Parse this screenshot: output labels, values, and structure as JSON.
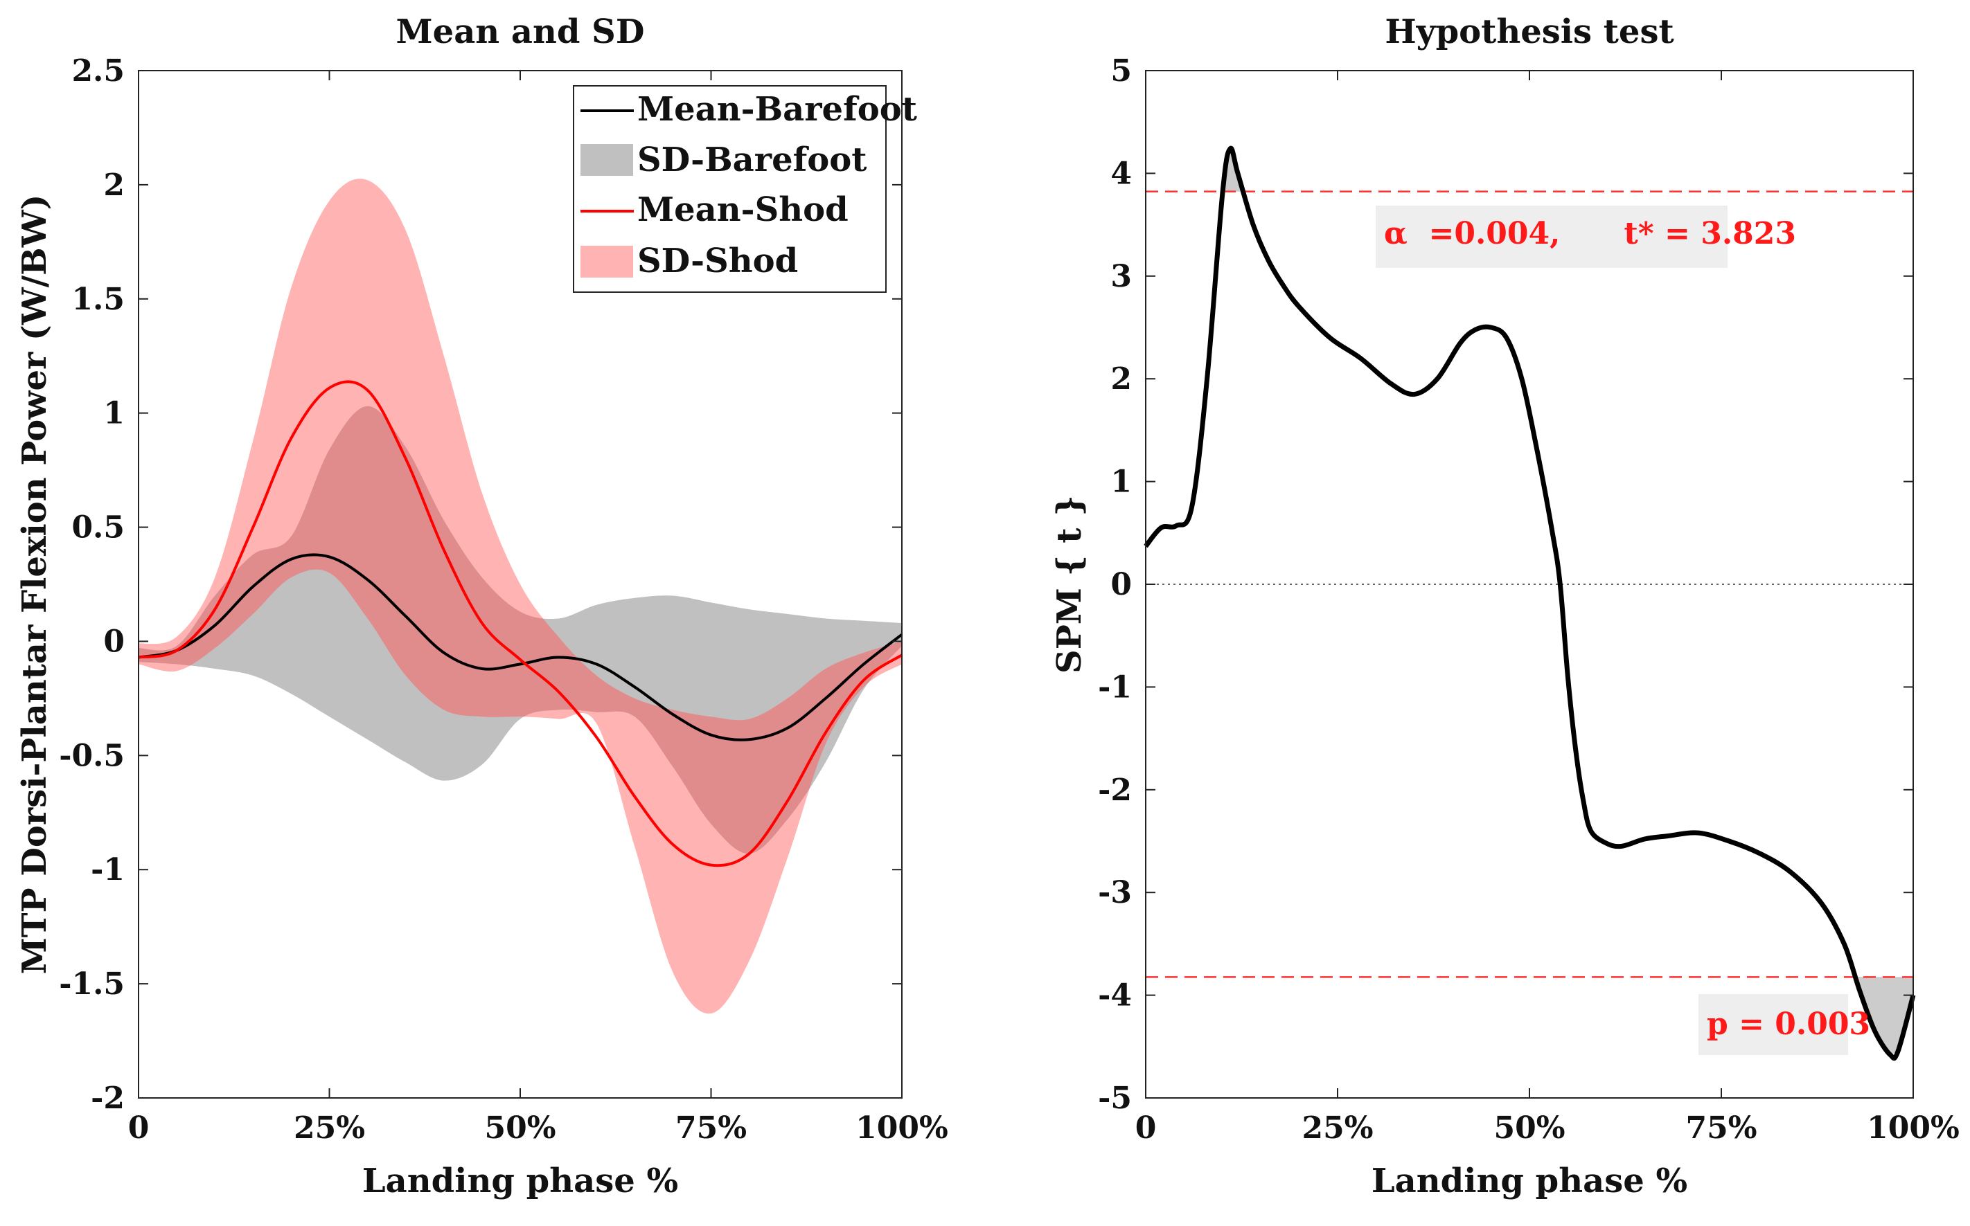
{
  "colors": {
    "barefoot_mean": "#000000",
    "barefoot_sd": "#c0c0c0",
    "shod_mean": "#ff0000",
    "shod_sd": "#ffb3b3",
    "overlap": "#e08c8c",
    "threshold": "#ff3030",
    "annot_bg": "#eeeeee"
  },
  "chart_data": [
    {
      "type": "line",
      "title": "Mean and SD",
      "xlabel": "Landing phase %",
      "ylabel": "MTP Dorsi-Plantar Flexion Power (W/BW)",
      "xlim": [
        0,
        100
      ],
      "ylim": [
        -2,
        2.5
      ],
      "xticks": [
        0,
        25,
        50,
        75,
        100
      ],
      "xtick_labels": [
        "0",
        "25%",
        "50%",
        "75%",
        "100%"
      ],
      "yticks": [
        2.5,
        2,
        1.5,
        1,
        0.5,
        0,
        -0.5,
        -1,
        -1.5,
        -2
      ],
      "ytick_labels": [
        "2.5",
        "2",
        "1.5",
        "1",
        "0.5",
        "0",
        "-0.5",
        "-1",
        "-1.5",
        "-2"
      ],
      "legend_position": "top-right",
      "legend": [
        "Mean-Barefoot",
        "SD-Barefoot",
        "Mean-Shod",
        "SD-Shod"
      ],
      "x": [
        0,
        5,
        10,
        15,
        20,
        25,
        30,
        35,
        40,
        45,
        50,
        55,
        60,
        65,
        70,
        75,
        80,
        85,
        90,
        95,
        100
      ],
      "series": [
        {
          "name": "Mean-Barefoot",
          "kind": "line",
          "values": [
            -0.07,
            -0.04,
            0.07,
            0.24,
            0.36,
            0.37,
            0.27,
            0.11,
            -0.05,
            -0.12,
            -0.1,
            -0.07,
            -0.1,
            -0.2,
            -0.32,
            -0.41,
            -0.43,
            -0.38,
            -0.25,
            -0.1,
            0.03
          ]
        },
        {
          "name": "SD-Barefoot",
          "kind": "band",
          "upper": [
            -0.03,
            -0.02,
            0.2,
            0.38,
            0.46,
            0.84,
            1.03,
            0.85,
            0.53,
            0.28,
            0.13,
            0.1,
            0.16,
            0.19,
            0.2,
            0.17,
            0.14,
            0.12,
            0.1,
            0.09,
            0.08
          ],
          "lower": [
            -0.09,
            -0.1,
            -0.12,
            -0.15,
            -0.23,
            -0.33,
            -0.43,
            -0.53,
            -0.61,
            -0.54,
            -0.34,
            -0.3,
            -0.31,
            -0.33,
            -0.55,
            -0.8,
            -0.93,
            -0.78,
            -0.53,
            -0.21,
            -0.02
          ]
        },
        {
          "name": "Mean-Shod",
          "kind": "line",
          "values": [
            -0.07,
            -0.04,
            0.14,
            0.5,
            0.89,
            1.11,
            1.1,
            0.8,
            0.4,
            0.08,
            -0.08,
            -0.22,
            -0.42,
            -0.68,
            -0.89,
            -0.98,
            -0.93,
            -0.7,
            -0.4,
            -0.17,
            -0.06
          ]
        },
        {
          "name": "SD-Shod",
          "kind": "band",
          "upper": [
            -0.01,
            0.02,
            0.28,
            0.88,
            1.55,
            1.93,
            2.02,
            1.8,
            1.25,
            0.65,
            0.25,
            0.02,
            -0.15,
            -0.25,
            -0.3,
            -0.33,
            -0.34,
            -0.25,
            -0.12,
            -0.05,
            0.0
          ],
          "lower": [
            -0.1,
            -0.13,
            -0.03,
            0.12,
            0.28,
            0.3,
            0.1,
            -0.15,
            -0.3,
            -0.33,
            -0.33,
            -0.34,
            -0.36,
            -0.9,
            -1.45,
            -1.63,
            -1.4,
            -0.95,
            -0.45,
            -0.2,
            -0.1
          ]
        }
      ]
    },
    {
      "type": "line",
      "title": "Hypothesis test",
      "xlabel": "Landing phase %",
      "ylabel": "SPM { t }",
      "xlim": [
        0,
        100
      ],
      "ylim": [
        -5,
        5
      ],
      "xticks": [
        0,
        25,
        50,
        75,
        100
      ],
      "xtick_labels": [
        "0",
        "25%",
        "50%",
        "75%",
        "100%"
      ],
      "yticks": [
        5,
        4,
        3,
        2,
        1,
        0,
        -1,
        -2,
        -3,
        -4,
        -5
      ],
      "ytick_labels": [
        "5",
        "4",
        "3",
        "2",
        "1",
        "0",
        "-1",
        "-2",
        "-3",
        "-4",
        "-5"
      ],
      "x": [
        0,
        2,
        4,
        6,
        8,
        10,
        11,
        12,
        14,
        16,
        18,
        20,
        24,
        28,
        32,
        35,
        38,
        41,
        43,
        45,
        47,
        49,
        51,
        53,
        54,
        55,
        56,
        57,
        58,
        60,
        62,
        65,
        68,
        72,
        76,
        80,
        84,
        88,
        91,
        93,
        95,
        97,
        98,
        100
      ],
      "series": [
        {
          "name": "SPM{t}",
          "values": [
            0.37,
            0.55,
            0.57,
            0.75,
            2.0,
            3.8,
            4.24,
            4.0,
            3.5,
            3.15,
            2.9,
            2.7,
            2.4,
            2.2,
            1.95,
            1.85,
            2.0,
            2.35,
            2.48,
            2.5,
            2.4,
            2.0,
            1.3,
            0.5,
            0.0,
            -0.9,
            -1.6,
            -2.1,
            -2.4,
            -2.52,
            -2.55,
            -2.48,
            -2.45,
            -2.42,
            -2.5,
            -2.62,
            -2.8,
            -3.1,
            -3.5,
            -3.95,
            -4.35,
            -4.58,
            -4.55,
            -4.0
          ]
        }
      ],
      "threshold": 3.823,
      "alpha": 0.004,
      "p_value": 0.003,
      "annotation_alpha": "α  =0.004,      t* = 3.823",
      "annotation_p": "p = 0.003"
    }
  ]
}
